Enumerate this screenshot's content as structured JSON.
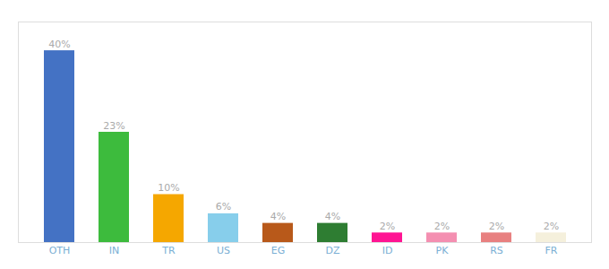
{
  "chart_data": {
    "type": "bar",
    "categories": [
      "OTH",
      "IN",
      "TR",
      "US",
      "EG",
      "DZ",
      "ID",
      "PK",
      "RS",
      "FR"
    ],
    "values": [
      40,
      23,
      10,
      6,
      4,
      4,
      2,
      2,
      2,
      2
    ],
    "value_labels": [
      "40%",
      "23%",
      "10%",
      "6%",
      "4%",
      "4%",
      "2%",
      "2%",
      "2%",
      "2%"
    ],
    "colors": [
      "#4472c4",
      "#3dbb3d",
      "#f5a700",
      "#87ceeb",
      "#b8591a",
      "#2e7d32",
      "#ff1493",
      "#f48fb1",
      "#e88080",
      "#f5f0dc"
    ],
    "ylim": [
      0,
      46
    ],
    "data_labels": true,
    "tick_labels": "x"
  }
}
